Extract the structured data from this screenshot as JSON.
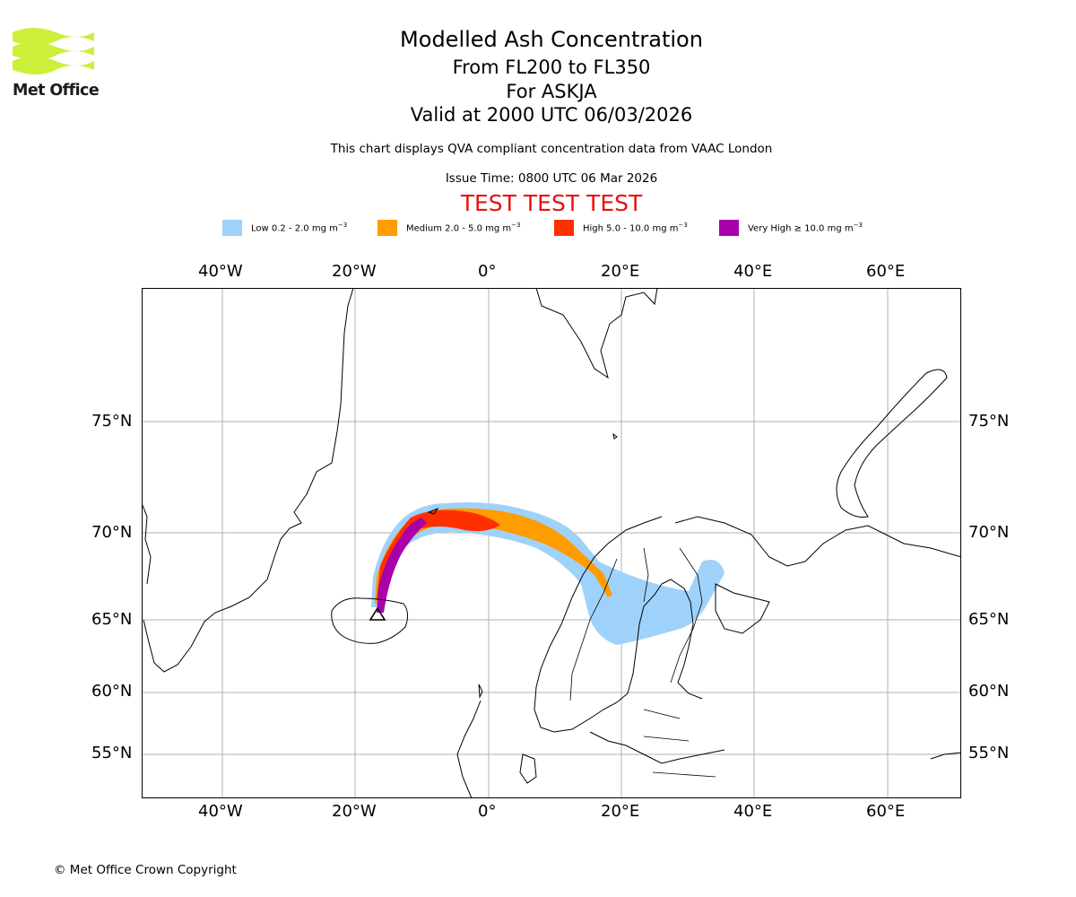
{
  "logo": {
    "name": "Met Office",
    "color": "#ccf03a"
  },
  "titles": {
    "main": "Modelled Ash Concentration",
    "levels": "From FL200 to FL350",
    "volcano": "For ASKJA",
    "valid": "Valid at 2000 UTC 06/03/2026",
    "description": "This chart displays QVA compliant concentration data from VAAC London",
    "issue": "Issue Time: 0800 UTC 06 Mar 2026",
    "test_banner": "TEST TEST TEST"
  },
  "legend": [
    {
      "label": "Low 0.2 - 2.0 mg m",
      "color": "#9fd2fb"
    },
    {
      "label": "Medium 2.0 - 5.0 mg m",
      "color": "#ff9c00"
    },
    {
      "label": "High 5.0 - 10.0 mg m",
      "color": "#ff3000"
    },
    {
      "label": "Very High ≥ 10.0 mg m",
      "color": "#aa00aa"
    }
  ],
  "legend_unit_exponent": "−3",
  "map": {
    "longitude_ticks": [
      "40°W",
      "20°W",
      "0°",
      "20°E",
      "40°E",
      "60°E"
    ],
    "latitude_ticks": [
      "75°N",
      "70°N",
      "65°N",
      "60°N",
      "55°N"
    ],
    "volcano_marker": "ASKJA"
  },
  "copyright": "© Met Office Crown Copyright"
}
